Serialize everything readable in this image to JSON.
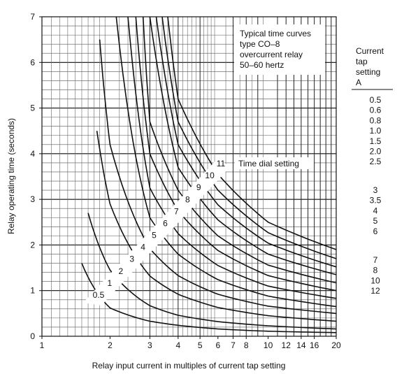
{
  "chart_data": {
    "type": "line",
    "x_scale": "log",
    "xlim": [
      1,
      20
    ],
    "ylim": [
      0,
      7
    ],
    "grid": true,
    "xlabel": "Relay input current in multiples of current tap setting",
    "ylabel": "Relay operating time (seconds)",
    "x_ticks": [
      "1",
      "2",
      "3",
      "4",
      "5",
      "6",
      "7",
      "8",
      "10",
      "12",
      "14",
      "16",
      "20"
    ],
    "y_ticks": [
      "0",
      "1",
      "2",
      "3",
      "4",
      "5",
      "6",
      "7"
    ],
    "note": [
      "Typical time curves",
      "type CO–8",
      "overcurrent relay",
      "50–60 hertz"
    ],
    "dial_setting_title": "Time dial setting",
    "tap_table": {
      "header": [
        "Current",
        "tap",
        "setting",
        "A"
      ],
      "values": [
        "0.5",
        "0.6",
        "0.8",
        "1.0",
        "1.5",
        "2.0",
        "2.5",
        "3",
        "3.5",
        "4",
        "5",
        "6",
        "7",
        "8",
        "10",
        "12"
      ]
    },
    "series": [
      {
        "name": "0.5",
        "x": [
          1.5,
          2,
          3,
          4,
          6,
          10,
          20
        ],
        "y": [
          1.6,
          0.62,
          0.33,
          0.24,
          0.16,
          0.11,
          0.08
        ]
      },
      {
        "name": "1",
        "x": [
          1.6,
          2,
          3,
          4,
          6,
          10,
          20
        ],
        "y": [
          2.7,
          1.45,
          0.67,
          0.46,
          0.32,
          0.23,
          0.16
        ]
      },
      {
        "name": "2",
        "x": [
          1.75,
          2,
          3,
          4,
          6,
          10,
          20
        ],
        "y": [
          4.5,
          2.9,
          1.32,
          0.92,
          0.63,
          0.45,
          0.33
        ]
      },
      {
        "name": "3",
        "x": [
          1.8,
          2,
          3,
          4,
          6,
          10,
          20
        ],
        "y": [
          6.5,
          4.2,
          1.92,
          1.33,
          0.92,
          0.66,
          0.5
        ]
      },
      {
        "name": "4",
        "x": [
          2.13,
          3,
          4,
          6,
          10,
          20
        ],
        "y": [
          7,
          2.6,
          1.8,
          1.24,
          0.88,
          0.65
        ]
      },
      {
        "name": "5",
        "x": [
          2.4,
          3,
          4,
          6,
          10,
          20
        ],
        "y": [
          7,
          3.25,
          2.25,
          1.55,
          1.1,
          0.83
        ]
      },
      {
        "name": "6",
        "x": [
          2.6,
          3,
          4,
          6,
          10,
          20
        ],
        "y": [
          7,
          4.0,
          2.75,
          1.88,
          1.33,
          1.0
        ]
      },
      {
        "name": "7",
        "x": [
          2.8,
          3,
          4,
          6,
          10,
          20
        ],
        "y": [
          7,
          4.7,
          3.2,
          2.2,
          1.56,
          1.17
        ]
      },
      {
        "name": "8",
        "x": [
          3.0,
          4,
          6,
          10,
          20
        ],
        "y": [
          7,
          3.7,
          2.55,
          1.8,
          1.35
        ]
      },
      {
        "name": "9",
        "x": [
          3.2,
          4,
          6,
          10,
          20
        ],
        "y": [
          7,
          4.2,
          2.88,
          2.04,
          1.52
        ]
      },
      {
        "name": "10",
        "x": [
          3.4,
          4,
          6,
          10,
          20
        ],
        "y": [
          7,
          4.7,
          3.2,
          2.27,
          1.7
        ]
      },
      {
        "name": "11",
        "x": [
          3.6,
          4,
          6,
          10,
          20
        ],
        "y": [
          7,
          5.2,
          3.55,
          2.5,
          1.9
        ]
      }
    ]
  }
}
